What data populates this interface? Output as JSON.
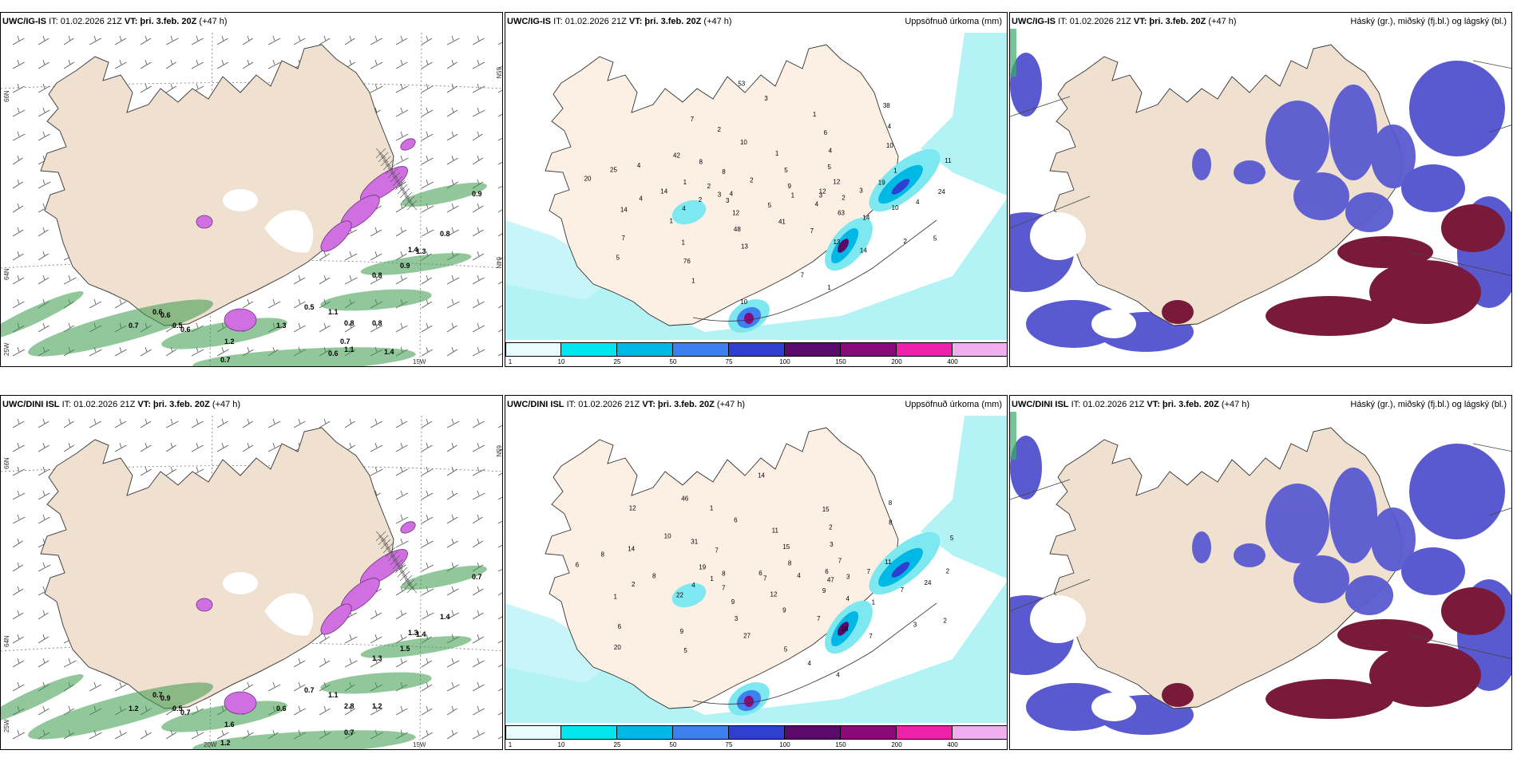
{
  "panels": [
    {
      "id": "p1",
      "model": "UWC/IG-IS",
      "it": "IT: 01.02.2026 21Z",
      "vt_label": "VT:",
      "vt": "þri. 3.feb. 20Z",
      "lead": "(+47 h)",
      "right_title": "",
      "lat_labels": [
        "66N",
        "64N",
        "25W"
      ],
      "lon_labels": [
        "15W"
      ],
      "lat_right": [
        "65N",
        "64N"
      ],
      "wind_values": [
        "0.9",
        "0.8",
        "1.4",
        "1.3",
        "0.9",
        "0.8",
        "0.5",
        "1.1",
        "0.8",
        "0.8",
        "0.7",
        "0.6",
        "0.6",
        "0.5",
        "0.6",
        "1.3",
        "1.2",
        "0.7",
        "1.1",
        "1.4",
        "0.6",
        "0.7"
      ]
    },
    {
      "id": "p2",
      "model": "UWC/IG-IS",
      "it": "IT: 01.02.2026 21Z",
      "vt_label": "VT:",
      "vt": "þri. 3.feb. 20Z",
      "lead": "(+47 h)",
      "right_title": "Uppsöfnuð úrkoma (mm)",
      "precip_values": [
        "2",
        "1",
        "1",
        "1",
        "1",
        "1",
        "1",
        "2",
        "14",
        "14",
        "38",
        "41",
        "42",
        "24",
        "3",
        "1",
        "14",
        "20",
        "12",
        "13",
        "7",
        "3",
        "4",
        "6",
        "1",
        "2",
        "19",
        "76",
        "53",
        "63",
        "4",
        "4",
        "5",
        "8",
        "4",
        "5",
        "5",
        "13",
        "25",
        "12",
        "48",
        "2",
        "5",
        "2",
        "4",
        "7",
        "4",
        "3",
        "1",
        "3",
        "4",
        "14",
        "10",
        "10",
        "8",
        "10",
        "7",
        "9",
        "7",
        "4",
        "11",
        "12",
        "10",
        "2",
        "3",
        "5"
      ]
    },
    {
      "id": "p3",
      "model": "UWC/IG-IS",
      "it": "IT: 01.02.2026 21Z",
      "vt_label": "VT:",
      "vt": "þri. 3.feb. 20Z",
      "lead": "(+47 h)",
      "right_title": "Háský (gr.), miðský (fj.bl.) og lágský (bl.)"
    },
    {
      "id": "p4",
      "model": "UWC/DINI ISL",
      "it": "IT: 01.02.2026 21Z",
      "vt_label": "VT:",
      "vt": "þri. 3.feb. 20Z",
      "lead": "(+47 h)",
      "right_title": "",
      "lat_labels": [
        "66N",
        "64N",
        "25W"
      ],
      "lon_labels": [
        "20W",
        "15W"
      ],
      "lat_right": [
        "65N"
      ],
      "wind_values": [
        "0.7",
        "1.4",
        "1.3",
        "1.4",
        "1.5",
        "1.3",
        "0.7",
        "1.1",
        "2.8",
        "1.2",
        "1.2",
        "0.7",
        "0.9",
        "0.5",
        "0.7",
        "0.6",
        "1.6",
        "1.2",
        "0.7"
      ]
    },
    {
      "id": "p5",
      "model": "UWC/DINI ISL",
      "it": "IT: 01.02.2026 21Z",
      "vt_label": "VT:",
      "vt": "þri. 3.feb. 20Z",
      "lead": "(+47 h)",
      "right_title": "Uppsöfnuð úrkoma (mm)",
      "precip_values": [
        "1",
        "1",
        "4",
        "9",
        "10",
        "2",
        "7",
        "11",
        "7",
        "6",
        "7",
        "27",
        "46",
        "47",
        "22",
        "15",
        "4",
        "19",
        "11",
        "5",
        "6",
        "4",
        "2",
        "8",
        "12",
        "31",
        "24",
        "20",
        "15",
        "16",
        "8",
        "6",
        "3",
        "1",
        "2",
        "4",
        "2",
        "4",
        "8",
        "7",
        "9",
        "14",
        "9",
        "8",
        "8",
        "7",
        "7",
        "7",
        "6",
        "8",
        "7",
        "14",
        "5",
        "9",
        "6",
        "3",
        "1",
        "3",
        "5",
        "12",
        "3"
      ]
    },
    {
      "id": "p6",
      "model": "UWC/DINI ISL",
      "it": "IT: 01.02.2026 21Z",
      "vt_label": "VT:",
      "vt": "þri. 3.feb. 20Z",
      "lead": "(+47 h)",
      "right_title": "Háský (gr.), miðský (fj.bl.) og lágský (bl.)"
    }
  ],
  "colorbar": {
    "ticks": [
      "1",
      "10",
      "25",
      "50",
      "75",
      "100",
      "150",
      "200",
      "400"
    ],
    "colors": [
      "#e8fbfd",
      "#00e5ee",
      "#00b8e6",
      "#3d80f0",
      "#2f40d0",
      "#5a0a6a",
      "#8a0a7a",
      "#ee22aa",
      "#f0b0f0"
    ]
  },
  "colors": {
    "land": "#f0e0d0",
    "land_precip": "#fcefe4",
    "sea_precip": "#b3f3f5",
    "wind_green": "#3a9a4a",
    "precip_purple": "#d070e0",
    "cloud_blue": "#5a5ad0",
    "cloud_maroon": "#7a1a3a"
  }
}
